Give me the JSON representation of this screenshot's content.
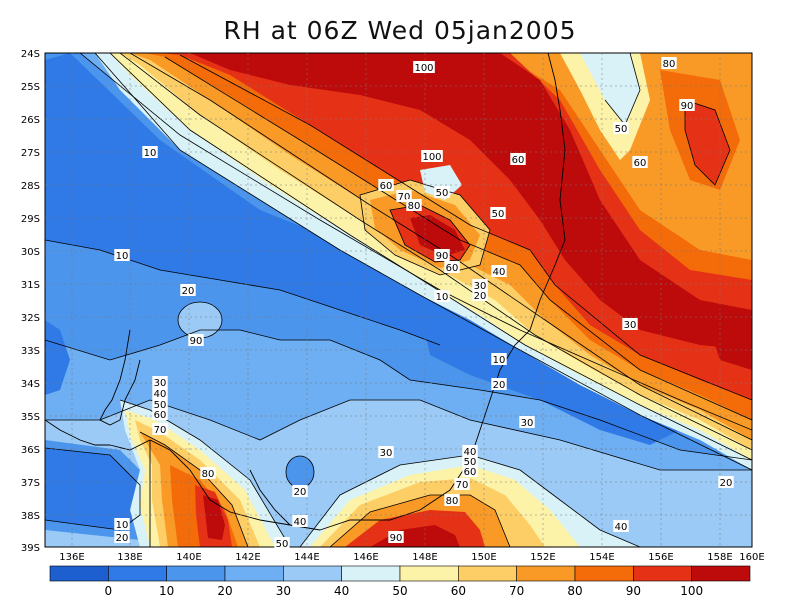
{
  "title": "RH at 06Z Wed 05jan2005",
  "map": {
    "lon_labels": [
      "136E",
      "138E",
      "140E",
      "142E",
      "144E",
      "146E",
      "148E",
      "150E",
      "152E",
      "154E",
      "156E",
      "158E",
      "160E"
    ],
    "lat_labels": [
      "24S",
      "25S",
      "26S",
      "27S",
      "28S",
      "29S",
      "30S",
      "31S",
      "32S",
      "33S",
      "34S",
      "35S",
      "36S",
      "37S",
      "38S",
      "39S"
    ],
    "contour_labels": [
      "100",
      "80",
      "90",
      "50",
      "10",
      "60",
      "100",
      "60",
      "60",
      "50",
      "70",
      "80",
      "50",
      "10",
      "90",
      "60",
      "40",
      "30",
      "20",
      "10",
      "20",
      "30",
      "90",
      "10",
      "30",
      "20",
      "40",
      "50",
      "60",
      "70",
      "30",
      "30",
      "40",
      "50",
      "60",
      "70",
      "80",
      "20",
      "90",
      "40",
      "50",
      "20",
      "10",
      "20",
      "80",
      "40"
    ]
  },
  "colorbar": {
    "colors": [
      "#1e5fd0",
      "#2f7ae6",
      "#4b95ed",
      "#6eaef2",
      "#9acaf5",
      "#d8f2f8",
      "#fdf3a8",
      "#fcce65",
      "#f99a26",
      "#f46b0a",
      "#e53216",
      "#bd0b0b"
    ],
    "tick_labels": [
      "0",
      "10",
      "20",
      "30",
      "40",
      "50",
      "60",
      "70",
      "80",
      "90",
      "100"
    ]
  }
}
